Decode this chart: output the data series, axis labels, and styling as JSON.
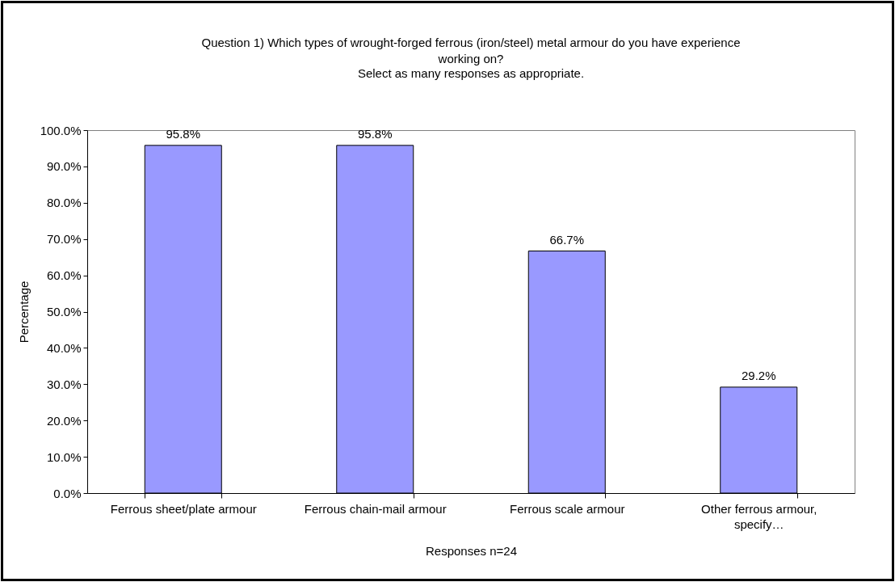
{
  "chart_data": {
    "type": "bar",
    "title": "Question 1)  Which types of wrought-forged ferrous (iron/steel) metal armour do you have experience working on?",
    "subtitle": "Select as many responses as appropriate.",
    "xlabel": "Responses n=24",
    "ylabel": "Percentage",
    "categories": [
      "Ferrous sheet/plate armour",
      "Ferrous chain-mail armour",
      "Ferrous scale armour",
      "Other ferrous armour, specify…"
    ],
    "values": [
      95.8,
      95.8,
      66.7,
      29.2
    ],
    "color": "#9999ff",
    "value_labels": [
      "95.8%",
      "95.8%",
      "66.7%",
      "29.2%"
    ],
    "ylim": [
      0,
      100
    ],
    "yticks": [
      {
        "value": 0,
        "label": "0.0%"
      },
      {
        "value": 10,
        "label": "10.0%"
      },
      {
        "value": 20,
        "label": "20.0%"
      },
      {
        "value": 30,
        "label": "30.0%"
      },
      {
        "value": 40,
        "label": "40.0%"
      },
      {
        "value": 50,
        "label": "50.0%"
      },
      {
        "value": 60,
        "label": "60.0%"
      },
      {
        "value": 70,
        "label": "70.0%"
      },
      {
        "value": 80,
        "label": "80.0%"
      },
      {
        "value": 90,
        "label": "90.0%"
      },
      {
        "value": 100,
        "label": "100.0%"
      }
    ],
    "grid": false
  }
}
